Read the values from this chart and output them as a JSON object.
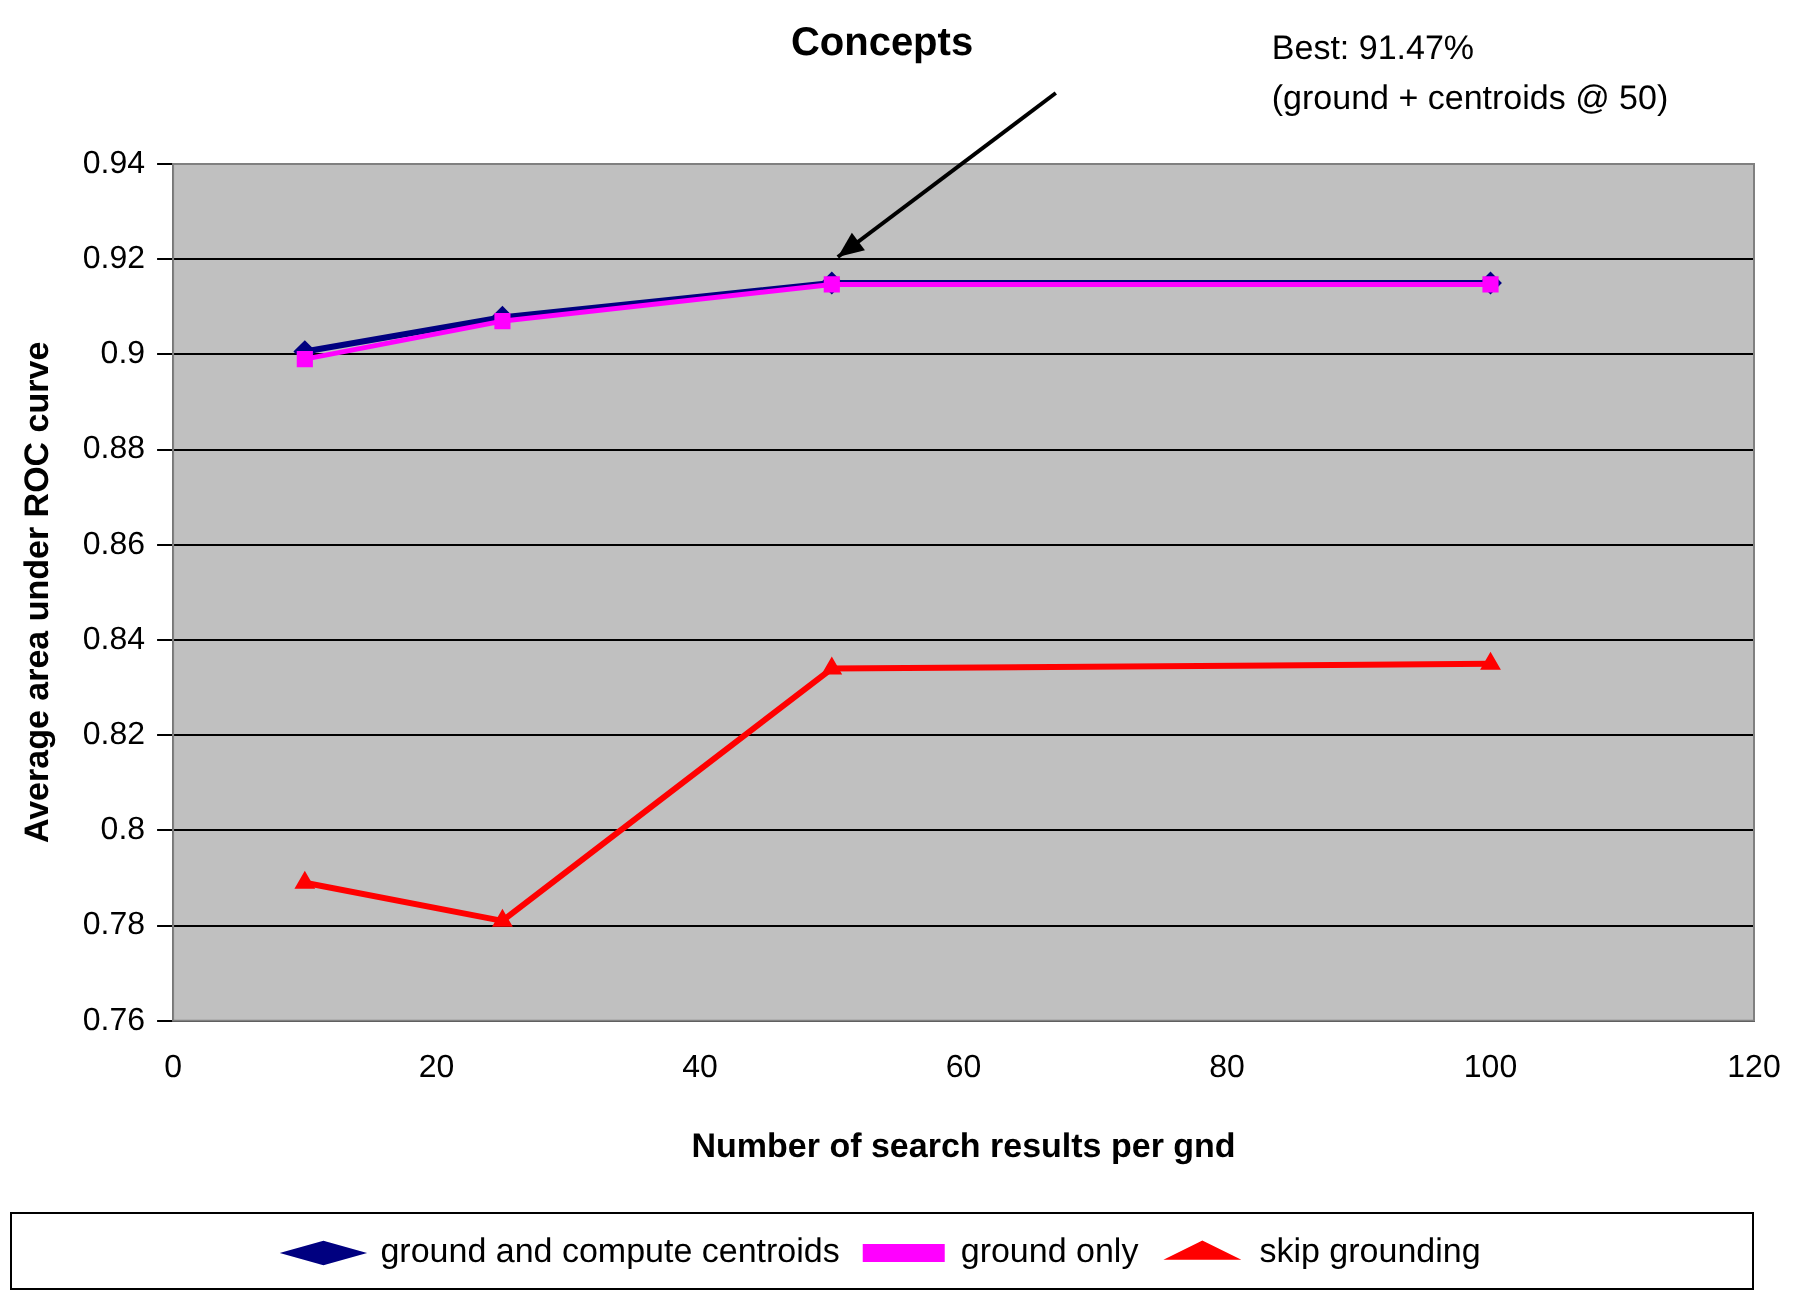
{
  "chart_data": {
    "type": "line",
    "title": "Concepts",
    "xlabel": "Number of search results per gnd",
    "ylabel": "Average area under ROC curve",
    "x": [
      10,
      25,
      50,
      100
    ],
    "series": [
      {
        "name": "ground and compute centroids",
        "color": "#000080",
        "marker": "diamond",
        "values": [
          0.9006,
          0.9078,
          0.915,
          0.915
        ]
      },
      {
        "name": "ground only",
        "color": "#ff00ff",
        "marker": "square",
        "values": [
          0.899,
          0.907,
          0.9147,
          0.9147
        ]
      },
      {
        "name": "skip grounding",
        "color": "#ff0000",
        "marker": "triangle",
        "values": [
          0.789,
          0.781,
          0.834,
          0.835
        ]
      }
    ],
    "xlim": [
      0,
      120
    ],
    "xticks": [
      0,
      20,
      40,
      60,
      80,
      100,
      120
    ],
    "ylim": [
      0.76,
      0.94
    ],
    "yticks": [
      0.76,
      0.78,
      0.8,
      0.82,
      0.84,
      0.86,
      0.88,
      0.9,
      0.92,
      0.94
    ],
    "grid": "y",
    "legend": "bottom",
    "annotations": [
      "Best: 91.47%\n(ground + centroids @ 50)"
    ]
  }
}
